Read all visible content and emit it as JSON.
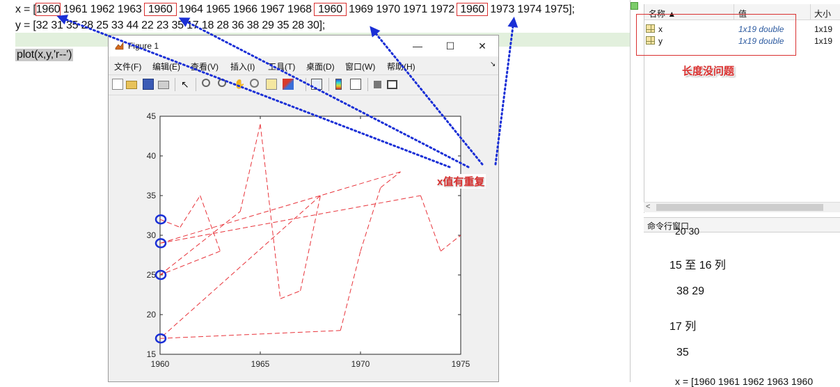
{
  "editor": {
    "line1_prefix": "x = [",
    "line1_h1": "1960",
    "line1_mid1": " 1961 1962 1963 ",
    "line1_h2": "1960",
    "line1_mid2": " 1964 1965 1966 1967 1968 ",
    "line1_h3": "1960",
    "line1_mid3": " 1969 1970  1971  1972 ",
    "line1_h4": "1960",
    "line1_suffix": " 1973 1974 1975];",
    "line2": "y = [32 31 35 28 25 33 44 22 23 35 17 18 28 36 38 29 35 28 30];",
    "line3": "plot(x,y,'r--')"
  },
  "workspace": {
    "col_name": "名称 ▲",
    "col_value": "值",
    "col_size": "大小",
    "vars": [
      {
        "name": "x",
        "value": "1x19 double",
        "size": "1x19"
      },
      {
        "name": "y",
        "value": "1x19 double",
        "size": "1x19"
      }
    ],
    "annotation": "长度没问题"
  },
  "command_window": {
    "title": "命令行窗口",
    "lines": [
      "20   30",
      "15 至 16 列",
      "38    29",
      "17 列",
      "35",
      "x =   [1960 1961 1962 1963  1960"
    ]
  },
  "figure": {
    "title": "Figure 1",
    "menu": [
      "文件(F)",
      "编辑(E)",
      "查看(V)",
      "插入(I)",
      "工具(T)",
      "桌面(D)",
      "窗口(W)",
      "帮助(H)"
    ],
    "menu_arrow": "↘",
    "minimize": "—",
    "maximize": "☐",
    "close": "✕",
    "toolbar_icons": [
      "new-file-icon",
      "open-folder-icon",
      "save-icon",
      "print-icon",
      "pointer-icon",
      "zoom-in-icon",
      "zoom-out-icon",
      "pan-icon",
      "rotate-icon",
      "data-cursor-icon",
      "brush-icon",
      "link-plot-icon",
      "colorbar-icon",
      "legend-icon",
      "hide-plot-tools-icon",
      "show-plot-tools-icon"
    ]
  },
  "annotation": {
    "label": "x值有重复",
    "color": "#d9302f",
    "arrow_color": "#1a2fd6"
  },
  "chart_data": {
    "type": "line",
    "style": "red dashed",
    "color": "#e8333a",
    "x": [
      1960,
      1961,
      1962,
      1963,
      1960,
      1964,
      1965,
      1966,
      1967,
      1968,
      1960,
      1969,
      1970,
      1971,
      1972,
      1960,
      1973,
      1974,
      1975
    ],
    "y": [
      32,
      31,
      35,
      28,
      25,
      33,
      44,
      22,
      23,
      35,
      17,
      18,
      28,
      36,
      38,
      29,
      35,
      28,
      30
    ],
    "xlim": [
      1960,
      1975
    ],
    "ylim": [
      15,
      45
    ],
    "xticks": [
      1960,
      1965,
      1970,
      1975
    ],
    "yticks": [
      15,
      20,
      25,
      30,
      35,
      40,
      45
    ],
    "highlighted_points": [
      32,
      29,
      25,
      17
    ],
    "grid": false
  }
}
